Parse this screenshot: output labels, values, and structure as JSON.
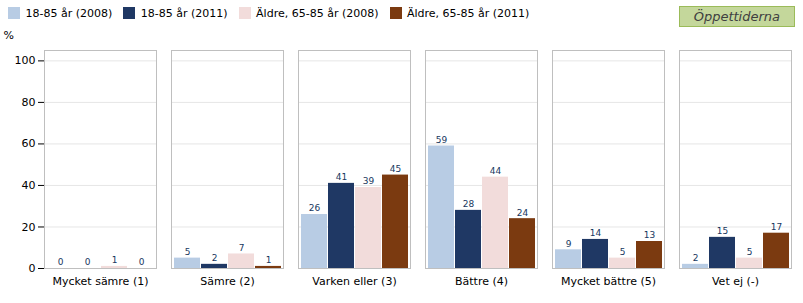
{
  "chart_data": {
    "type": "bar",
    "categories": [
      "Mycket sämre (1)",
      "Sämre (2)",
      "Varken eller (3)",
      "Bättre (4)",
      "Mycket bättre (5)",
      "Vet ej (-)"
    ],
    "series": [
      {
        "name": "18-85 år (2008)",
        "color": "#B8CCE4",
        "values": [
          0,
          5,
          26,
          59,
          9,
          2
        ]
      },
      {
        "name": "18-85 år (2011)",
        "color": "#1F3864",
        "values": [
          0,
          2,
          41,
          28,
          14,
          15
        ]
      },
      {
        "name": "Äldre, 65-85 år (2008)",
        "color": "#F2DCDB",
        "values": [
          1,
          7,
          39,
          44,
          5,
          5
        ]
      },
      {
        "name": "Äldre, 65-85 år (2011)",
        "color": "#7B3A10",
        "values": [
          0,
          1,
          45,
          24,
          13,
          17
        ]
      }
    ],
    "ylabel": "%",
    "annotation": "Öppettiderna",
    "ylim": [
      0,
      105
    ],
    "yticks": [
      0,
      20,
      40,
      60,
      80,
      100
    ],
    "grid": true,
    "legend": "upper left",
    "data_labels": true
  }
}
